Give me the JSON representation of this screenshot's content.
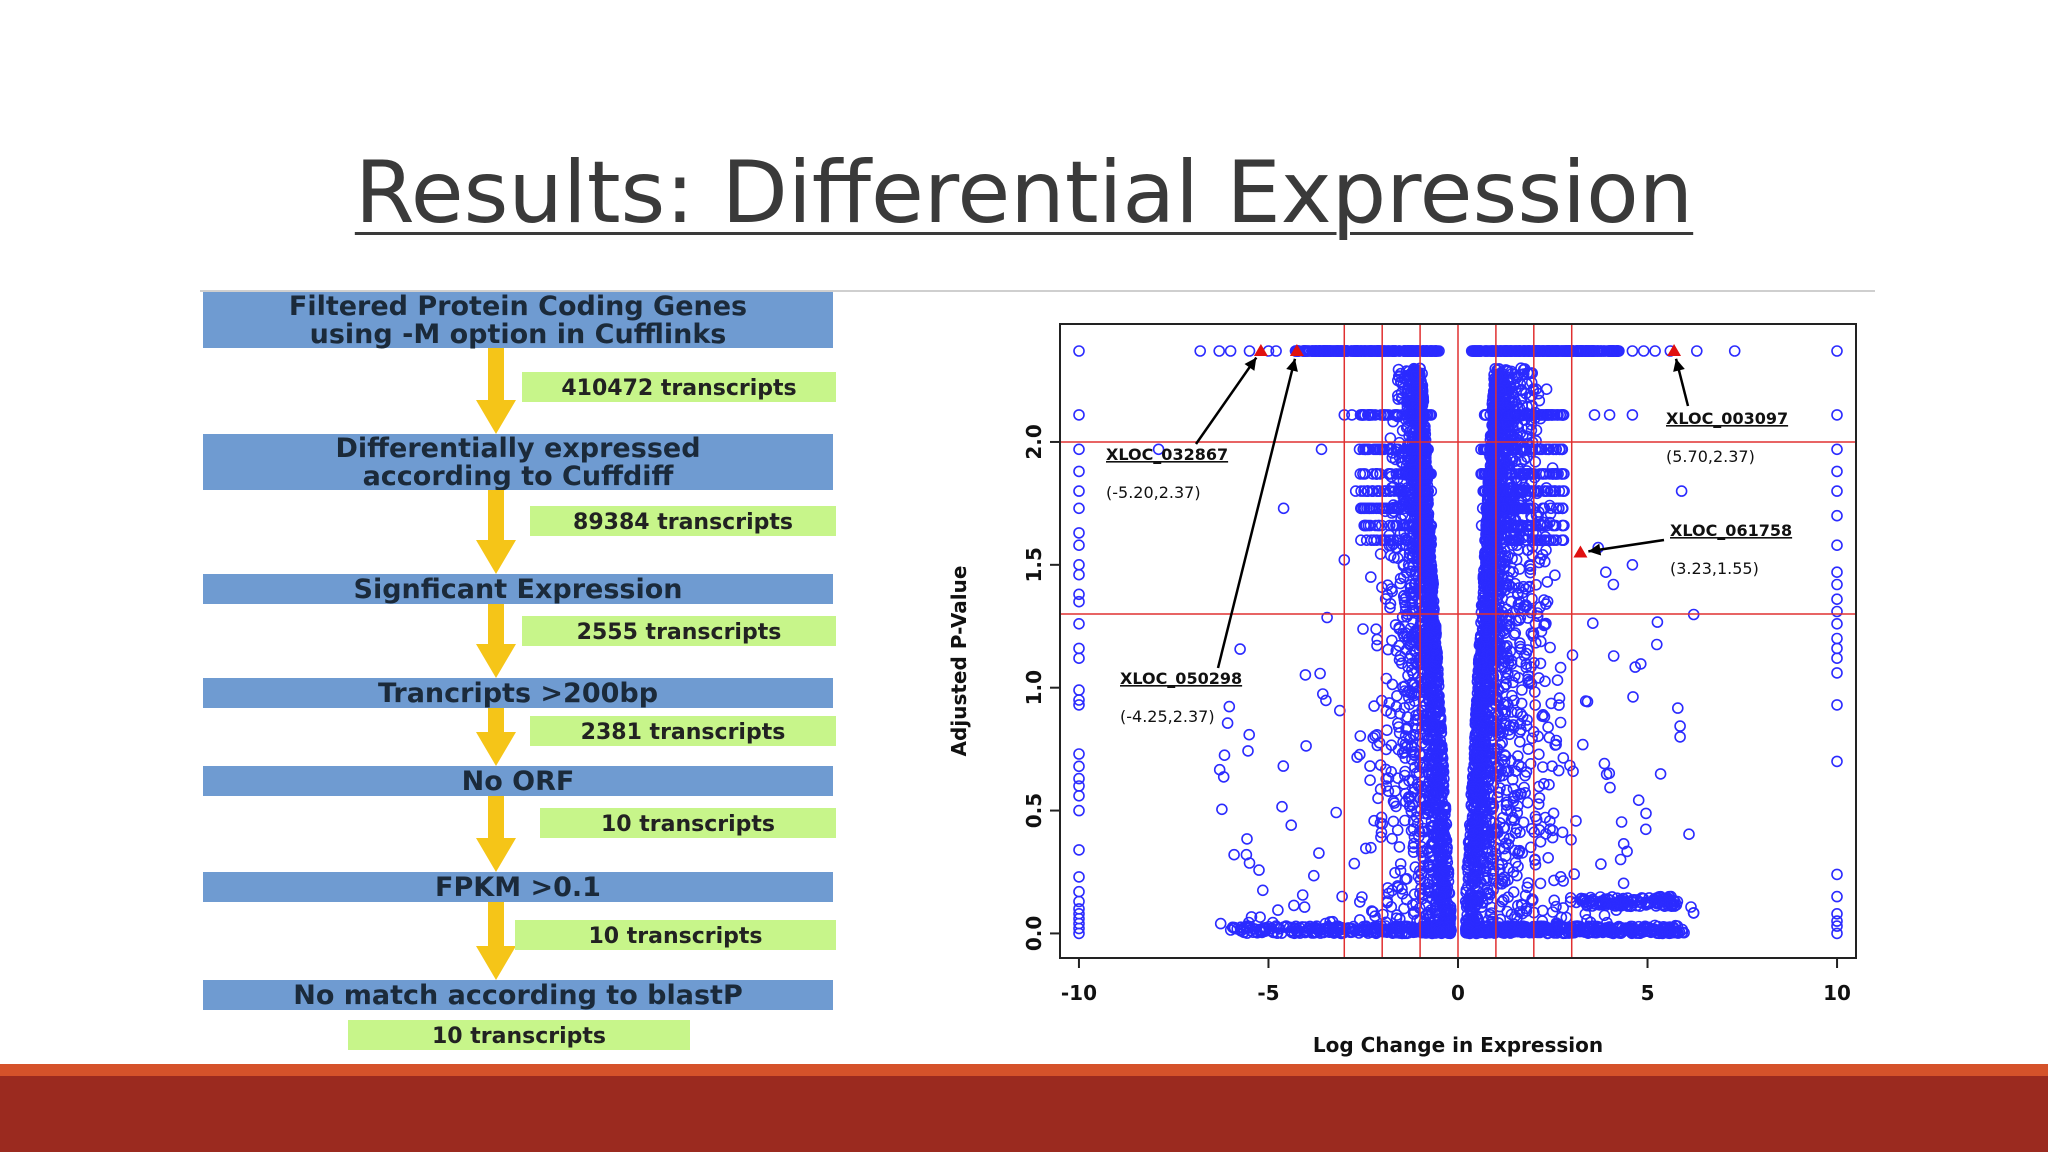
{
  "slide": {
    "title": "Results: Differential Expression"
  },
  "flowchart": {
    "steps": [
      {
        "label": "Filtered Protein Coding Genes\nusing -M option in Cufflinks",
        "count": "410472 transcripts"
      },
      {
        "label": "Differentially expressed\naccording to Cuffdiff",
        "count": "89384 transcripts"
      },
      {
        "label": "Signficant Expression",
        "count": "2555 transcripts"
      },
      {
        "label": "Trancripts >200bp",
        "count": "2381 transcripts"
      },
      {
        "label": "No ORF",
        "count": "10 transcripts"
      },
      {
        "label": "FPKM >0.1",
        "count": "10 transcripts"
      },
      {
        "label": "No match according to blastP",
        "count": "10 transcripts"
      }
    ],
    "colors": {
      "box": "#6f9bd1",
      "count": "#c7f58a",
      "arrow": "#f5c518"
    }
  },
  "chart_data": {
    "type": "scatter",
    "xlabel": "Log Change in Expression",
    "ylabel": "Adjusted P-Value",
    "xlim": [
      -10.5,
      10.5
    ],
    "ylim": [
      -0.1,
      2.48
    ],
    "x_ticks": [
      -10,
      -5,
      0,
      5,
      10
    ],
    "y_ticks": [
      0.0,
      0.5,
      1.0,
      1.5,
      2.0
    ],
    "vertical_lines": [
      -3,
      -2,
      -1,
      1,
      2,
      3
    ],
    "horizontal_lines": [
      2.0,
      1.3
    ],
    "point_color": "#2b2bff",
    "highlight_color": "#e01010",
    "line_color": "#e03030",
    "highlighted": [
      {
        "label": "XLOC_032867",
        "coords": "(-5.20,2.37)",
        "x": -5.2,
        "y": 2.37
      },
      {
        "label": "XLOC_050298",
        "coords": "(-4.25,2.37)",
        "x": -4.25,
        "y": 2.37
      },
      {
        "label": "XLOC_003097",
        "coords": "(5.70,2.37)",
        "x": 5.7,
        "y": 2.37
      },
      {
        "label": "XLOC_061758",
        "coords": "(3.23,1.55)",
        "x": 3.23,
        "y": 1.55
      }
    ]
  }
}
